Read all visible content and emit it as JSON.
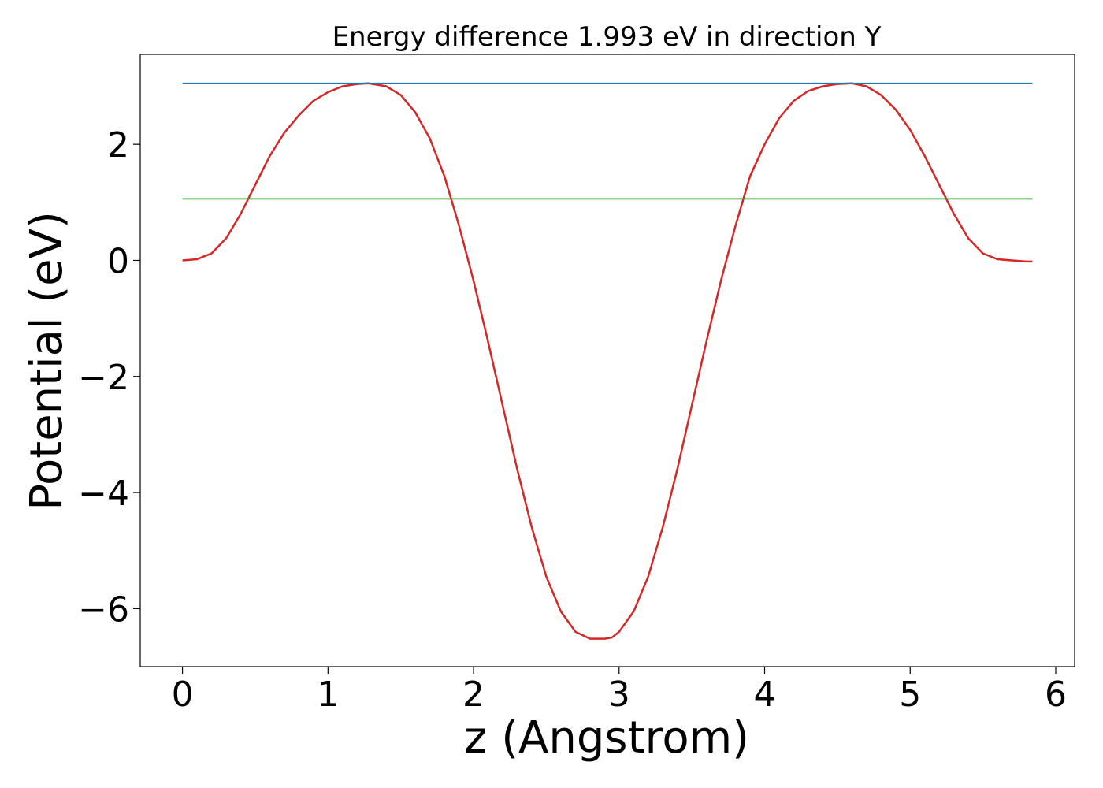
{
  "chart_data": {
    "type": "line",
    "title": "Energy difference 1.993 eV in direction Y",
    "xlabel": "z (Angstrom)",
    "ylabel": "Potential (eV)",
    "xlim": [
      -0.29,
      6.13
    ],
    "ylim": [
      -7.0,
      3.55
    ],
    "xticks": [
      0,
      1,
      2,
      3,
      4,
      5,
      6
    ],
    "xtick_labels": [
      "0",
      "1",
      "2",
      "3",
      "4",
      "5",
      "6"
    ],
    "yticks": [
      -6,
      -4,
      -2,
      0,
      2
    ],
    "ytick_labels": [
      "−6",
      "−4",
      "−2",
      "0",
      "2"
    ],
    "grid": false,
    "legend": "none",
    "series": [
      {
        "color": "#d62728",
        "x": [
          0.0,
          0.1,
          0.2,
          0.3,
          0.4,
          0.5,
          0.6,
          0.7,
          0.8,
          0.9,
          1.0,
          1.1,
          1.2,
          1.28,
          1.4,
          1.5,
          1.6,
          1.7,
          1.8,
          1.9,
          2.0,
          2.1,
          2.2,
          2.3,
          2.4,
          2.5,
          2.6,
          2.7,
          2.8,
          2.9,
          2.95,
          3.0,
          3.1,
          3.2,
          3.3,
          3.4,
          3.5,
          3.6,
          3.7,
          3.8,
          3.9,
          4.0,
          4.1,
          4.2,
          4.3,
          4.4,
          4.5,
          4.6,
          4.7,
          4.8,
          4.9,
          5.0,
          5.1,
          5.2,
          5.3,
          5.4,
          5.5,
          5.6,
          5.7,
          5.8,
          5.84
        ],
        "y": [
          0.0,
          0.02,
          0.12,
          0.38,
          0.8,
          1.3,
          1.8,
          2.2,
          2.5,
          2.75,
          2.9,
          3.0,
          3.04,
          3.05,
          3.0,
          2.85,
          2.55,
          2.1,
          1.45,
          0.6,
          -0.35,
          -1.4,
          -2.5,
          -3.6,
          -4.6,
          -5.45,
          -6.05,
          -6.4,
          -6.52,
          -6.52,
          -6.5,
          -6.4,
          -6.05,
          -5.45,
          -4.6,
          -3.6,
          -2.5,
          -1.4,
          -0.35,
          0.6,
          1.45,
          2.0,
          2.45,
          2.75,
          2.92,
          3.0,
          3.04,
          3.05,
          3.0,
          2.85,
          2.6,
          2.25,
          1.8,
          1.3,
          0.8,
          0.38,
          0.12,
          0.02,
          0.0,
          -0.02,
          -0.02
        ]
      },
      {
        "color": "#1f77b4",
        "x": [
          0.0,
          5.84
        ],
        "y": [
          3.05,
          3.05
        ]
      },
      {
        "color": "#2ca02c",
        "x": [
          0.0,
          5.84
        ],
        "y": [
          1.06,
          1.06
        ]
      }
    ]
  }
}
